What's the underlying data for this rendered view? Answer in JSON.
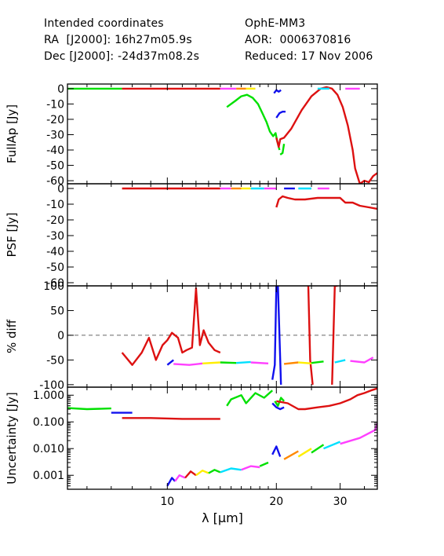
{
  "header": {
    "line1_left": "Intended coordinates",
    "line2_left": "RA  [J2000]: 16h27m05.9s",
    "line3_left": "Dec [J2000]: -24d37m08.2s",
    "line1_right": "OphE-MM3",
    "line2_right": "AOR:  0006370816",
    "line3_right": "Reduced: 17 Nov 2006"
  },
  "chart_data": [
    {
      "type": "line",
      "panel": "fullap",
      "ylabel": "FullAp [Jy]",
      "ylim": [
        -62,
        3
      ],
      "yticks": [
        0,
        -10,
        -20,
        -30,
        -40,
        -50,
        -60
      ],
      "x_scale": "log",
      "xlim": [
        5.3,
        38
      ],
      "series": [
        {
          "color": "#00e000",
          "x": [
            5.3,
            6.5,
            7.5
          ],
          "y": [
            0,
            0,
            0
          ]
        },
        {
          "color": "#dd1111",
          "x": [
            7.5,
            14.0
          ],
          "y": [
            0,
            0
          ]
        },
        {
          "color": "#ff40ff",
          "x": [
            14.0,
            15.5
          ],
          "y": [
            0,
            0
          ]
        },
        {
          "color": "#00e000",
          "x": [
            14.6,
            15.4,
            16.0,
            16.6,
            17.2,
            17.8,
            18.3,
            18.8,
            19.2,
            19.6,
            19.9,
            20.1,
            20.4
          ],
          "y": [
            -12,
            -8,
            -5,
            -4,
            -6,
            -10,
            -16,
            -22,
            -28,
            -31,
            -29,
            -34,
            -40
          ]
        },
        {
          "color": "#00e000",
          "x": [
            20.5,
            20.8,
            21.0
          ],
          "y": [
            -43,
            -42,
            -36
          ]
        },
        {
          "color": "#1010ee",
          "x": [
            19.7,
            20.0,
            20.3,
            20.6
          ],
          "y": [
            -3,
            -1,
            -2,
            -1
          ]
        },
        {
          "color": "#1010ee",
          "x": [
            20.0,
            20.4,
            20.8,
            21.2
          ],
          "y": [
            -19,
            -16,
            -15,
            -15
          ]
        },
        {
          "color": "#dd1111",
          "x": [
            20.0,
            20.3,
            20.5,
            21.0,
            22.0,
            23.5,
            25.0,
            26.5,
            27.5,
            28.5,
            29.5,
            30.5,
            31.5,
            32.5,
            33.0,
            34.0,
            35.0,
            36.0,
            37.0,
            38.0
          ],
          "y": [
            -32,
            -38,
            -33,
            -32,
            -26,
            -14,
            -5,
            0,
            1,
            0,
            -4,
            -12,
            -24,
            -40,
            -52,
            -62,
            -60,
            -61,
            -57,
            -55
          ]
        },
        {
          "color": "#ff8800",
          "x": [
            15.5,
            16.5
          ],
          "y": [
            0,
            0
          ]
        },
        {
          "color": "#ffee00",
          "x": [
            16.5,
            17.5
          ],
          "y": [
            0,
            0
          ]
        },
        {
          "color": "#00e0ff",
          "x": [
            26.0,
            28.0
          ],
          "y": [
            0,
            0
          ]
        },
        {
          "color": "#ff40ff",
          "x": [
            31.0,
            34.0
          ],
          "y": [
            0,
            0
          ]
        }
      ]
    },
    {
      "type": "line",
      "panel": "psf",
      "ylabel": "PSF [Jy]",
      "ylim": [
        -62,
        3
      ],
      "yticks": [
        0,
        -10,
        -20,
        -30,
        -40,
        -50,
        -60
      ],
      "x_scale": "log",
      "xlim": [
        5.3,
        38
      ],
      "series": [
        {
          "color": "#dd1111",
          "x": [
            7.5,
            14.0
          ],
          "y": [
            0,
            0
          ]
        },
        {
          "color": "#ff40ff",
          "x": [
            14.0,
            15.0
          ],
          "y": [
            0,
            0
          ]
        },
        {
          "color": "#ff8800",
          "x": [
            15.0,
            16.0
          ],
          "y": [
            0,
            0
          ]
        },
        {
          "color": "#ffee00",
          "x": [
            16.0,
            17.0
          ],
          "y": [
            0,
            0
          ]
        },
        {
          "color": "#00e0ff",
          "x": [
            17.0,
            18.5
          ],
          "y": [
            0,
            0
          ]
        },
        {
          "color": "#ff40ff",
          "x": [
            18.5,
            20.0
          ],
          "y": [
            0,
            0
          ]
        },
        {
          "color": "#1010ee",
          "x": [
            21.0,
            22.5
          ],
          "y": [
            0,
            0
          ]
        },
        {
          "color": "#00e0ff",
          "x": [
            23.0,
            25.0
          ],
          "y": [
            0,
            0
          ]
        },
        {
          "color": "#ff40ff",
          "x": [
            26.0,
            28.0
          ],
          "y": [
            0,
            0
          ]
        },
        {
          "color": "#dd1111",
          "x": [
            20.0,
            20.3,
            20.8,
            21.5,
            22.5,
            24.0,
            26.0,
            28.0,
            29.0,
            30.0,
            31.0,
            32.5,
            34.0,
            36.0,
            38.0
          ],
          "y": [
            -12,
            -7,
            -5,
            -6,
            -7,
            -7,
            -6,
            -6,
            -6,
            -6,
            -9,
            -9,
            -11,
            -12,
            -13
          ]
        }
      ]
    },
    {
      "type": "line",
      "panel": "pctdiff",
      "ylabel": "% diff",
      "ylim": [
        -105,
        100
      ],
      "yticks": [
        100,
        50,
        0,
        -50,
        -100
      ],
      "reference_line": 0,
      "x_scale": "log",
      "xlim": [
        5.3,
        38
      ],
      "series": [
        {
          "color": "#dd1111",
          "x": [
            7.5,
            8.0,
            8.5,
            8.9,
            9.3,
            9.7,
            10.0,
            10.3,
            10.7,
            11.0,
            11.3,
            11.7,
            12.0,
            12.3,
            12.6,
            13.0,
            13.5,
            14.0
          ],
          "y": [
            -35,
            -60,
            -35,
            -5,
            -50,
            -20,
            -10,
            5,
            -5,
            -35,
            -30,
            -25,
            95,
            -20,
            10,
            -15,
            -30,
            -35
          ]
        },
        {
          "color": "#1010ee",
          "x": [
            10.0,
            10.4
          ],
          "y": [
            -60,
            -50
          ]
        },
        {
          "color": "#ff40ff",
          "x": [
            10.4,
            11.5,
            12.5
          ],
          "y": [
            -58,
            -60,
            -57
          ]
        },
        {
          "color": "#ffee00",
          "x": [
            12.5,
            14.0
          ],
          "y": [
            -57,
            -55
          ]
        },
        {
          "color": "#00e000",
          "x": [
            14.0,
            15.5
          ],
          "y": [
            -55,
            -56
          ]
        },
        {
          "color": "#00e0ff",
          "x": [
            15.5,
            17.0
          ],
          "y": [
            -56,
            -54
          ]
        },
        {
          "color": "#ff40ff",
          "x": [
            17.0,
            19.0
          ],
          "y": [
            -55,
            -57
          ]
        },
        {
          "color": "#1010ee",
          "x": [
            19.5,
            19.8,
            20.0,
            20.2,
            20.6
          ],
          "y": [
            -90,
            -60,
            100,
            100,
            -100
          ]
        },
        {
          "color": "#dd1111",
          "x": [
            24.5,
            24.8,
            25.2
          ],
          "y": [
            100,
            -50,
            -100
          ]
        },
        {
          "color": "#dd1111",
          "x": [
            28.5,
            29.0,
            29.5
          ],
          "y": [
            -100,
            100,
            100
          ]
        },
        {
          "color": "#ff8800",
          "x": [
            21.0,
            23.0
          ],
          "y": [
            -58,
            -55
          ]
        },
        {
          "color": "#ffee00",
          "x": [
            23.0,
            25.0
          ],
          "y": [
            -55,
            -57
          ]
        },
        {
          "color": "#00e000",
          "x": [
            25.0,
            27.0
          ],
          "y": [
            -56,
            -53
          ]
        },
        {
          "color": "#00e0ff",
          "x": [
            29.0,
            31.0
          ],
          "y": [
            -55,
            -50
          ]
        },
        {
          "color": "#ff40ff",
          "x": [
            32.0,
            35.0,
            37.0
          ],
          "y": [
            -52,
            -55,
            -45
          ]
        }
      ]
    },
    {
      "type": "line",
      "panel": "uncertainty",
      "ylabel": "Uncertainty [Jy]",
      "y_scale": "log",
      "ylim": [
        0.0003,
        2.0
      ],
      "yticks": [
        1.0,
        0.1,
        0.01,
        0.001
      ],
      "ytick_labels": [
        "1.000",
        "0.100",
        "0.010",
        "0.001"
      ],
      "x_scale": "log",
      "xlim": [
        5.3,
        38
      ],
      "xticks": [
        10,
        20,
        30
      ],
      "xlabel": "λ [μm]",
      "series": [
        {
          "color": "#00e000",
          "x": [
            5.3,
            6.0,
            7.0
          ],
          "y": [
            0.33,
            0.3,
            0.32
          ]
        },
        {
          "color": "#1010ee",
          "x": [
            7.0,
            8.0
          ],
          "y": [
            0.22,
            0.22
          ]
        },
        {
          "color": "#dd1111",
          "x": [
            7.5,
            9.0,
            11.0,
            13.0,
            14.0
          ],
          "y": [
            0.14,
            0.14,
            0.13,
            0.13,
            0.13
          ]
        },
        {
          "color": "#00e000",
          "x": [
            14.6,
            15.0,
            16.0,
            16.5,
            17.5,
            18.5,
            19.5
          ],
          "y": [
            0.4,
            0.7,
            1.0,
            0.5,
            1.2,
            0.8,
            1.5
          ]
        },
        {
          "color": "#00e000",
          "x": [
            19.8,
            20.2,
            20.6,
            21.0
          ],
          "y": [
            0.6,
            0.4,
            0.8,
            0.6
          ]
        },
        {
          "color": "#1010ee",
          "x": [
            19.5,
            20.0,
            20.5,
            21.0
          ],
          "y": [
            0.5,
            0.35,
            0.3,
            0.35
          ]
        },
        {
          "color": "#dd1111",
          "x": [
            20.0,
            21.5,
            23.0,
            24.0,
            26.0,
            28.0,
            30.0,
            32.0,
            33.5,
            35.0,
            36.5,
            38.0
          ],
          "y": [
            0.6,
            0.5,
            0.3,
            0.3,
            0.35,
            0.4,
            0.5,
            0.7,
            1.0,
            1.2,
            1.5,
            1.8
          ]
        },
        {
          "color": "#1010ee",
          "x": [
            10.0,
            10.3,
            10.5
          ],
          "y": [
            0.0004,
            0.0008,
            0.0006
          ]
        },
        {
          "color": "#ff40ff",
          "x": [
            10.5,
            10.8,
            11.2
          ],
          "y": [
            0.0006,
            0.001,
            0.0008
          ]
        },
        {
          "color": "#dd1111",
          "x": [
            11.2,
            11.6,
            12.0
          ],
          "y": [
            0.0008,
            0.0014,
            0.001
          ]
        },
        {
          "color": "#ffee00",
          "x": [
            12.0,
            12.5,
            13.0
          ],
          "y": [
            0.001,
            0.0015,
            0.0012
          ]
        },
        {
          "color": "#00e000",
          "x": [
            13.0,
            13.5,
            14.0
          ],
          "y": [
            0.0012,
            0.0016,
            0.0013
          ]
        },
        {
          "color": "#00e0ff",
          "x": [
            14.0,
            15.0,
            16.0
          ],
          "y": [
            0.0013,
            0.0018,
            0.0016
          ]
        },
        {
          "color": "#ff40ff",
          "x": [
            16.0,
            17.0,
            18.0
          ],
          "y": [
            0.0016,
            0.0022,
            0.002
          ]
        },
        {
          "color": "#00e000",
          "x": [
            18.0,
            19.0
          ],
          "y": [
            0.0022,
            0.003
          ]
        },
        {
          "color": "#1010ee",
          "x": [
            19.5,
            20.0,
            20.5
          ],
          "y": [
            0.006,
            0.012,
            0.005
          ]
        },
        {
          "color": "#ff8800",
          "x": [
            21.0,
            23.0
          ],
          "y": [
            0.004,
            0.008
          ]
        },
        {
          "color": "#ffee00",
          "x": [
            23.0,
            25.0
          ],
          "y": [
            0.005,
            0.01
          ]
        },
        {
          "color": "#00e000",
          "x": [
            25.0,
            27.0
          ],
          "y": [
            0.007,
            0.014
          ]
        },
        {
          "color": "#00e0ff",
          "x": [
            27.0,
            30.0
          ],
          "y": [
            0.01,
            0.018
          ]
        },
        {
          "color": "#ff40ff",
          "x": [
            30.0,
            34.0,
            37.5,
            38.0
          ],
          "y": [
            0.015,
            0.025,
            0.05,
            0.09
          ]
        }
      ]
    }
  ]
}
